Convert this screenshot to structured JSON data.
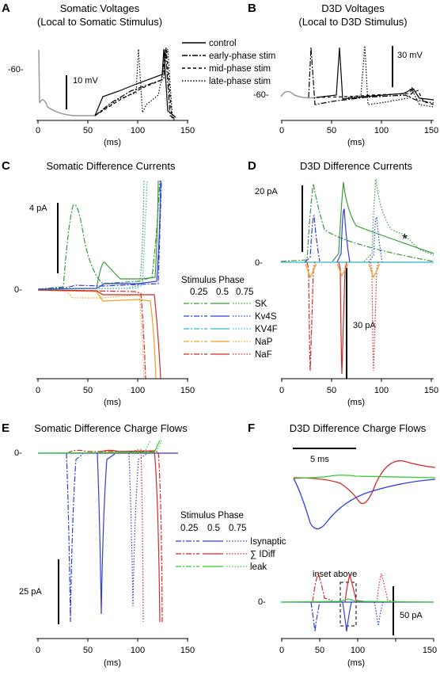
{
  "panels": {
    "A": {
      "letter": "A",
      "title": [
        "Somatic Voltages",
        "(Local to Somatic Stimulus)"
      ],
      "xlabel": "(ms)",
      "xticks": [
        "0",
        "50",
        "100",
        "150"
      ],
      "ylabel_mark": "-60-",
      "scalebar": "10 mV",
      "legend": [
        "control",
        "early-phase stim",
        "mid-phase stim",
        "late-phase stim"
      ]
    },
    "B": {
      "letter": "B",
      "title": [
        "D3D Voltages",
        "(Local to D3D Stimulus)"
      ],
      "xlabel": "(ms)",
      "xticks": [
        "0",
        "50",
        "100",
        "150"
      ],
      "ylabel_mark": "-60-",
      "scalebar": "30 mV",
      "star": "*"
    },
    "C": {
      "letter": "C",
      "title": [
        "Somatic Difference Currents"
      ],
      "xlabel": "(ms)",
      "xticks": [
        "0",
        "50",
        "100",
        "150"
      ],
      "ylabel_mark": "0-",
      "scalebar": "4 pA"
    },
    "D": {
      "letter": "D",
      "title": [
        "D3D Difference Currents"
      ],
      "xlabel": "(ms)",
      "xticks": [
        "0",
        "50",
        "100",
        "150"
      ],
      "ylabel_mark": "0-",
      "scalebar_top": "20 pA",
      "scalebar_bottom": "30 pA",
      "star": "*"
    },
    "E": {
      "letter": "E",
      "title": [
        "Somatic Difference Charge Flows"
      ],
      "xlabel": "(ms)",
      "xticks": [
        "0",
        "50",
        "100",
        "150"
      ],
      "ylabel_mark": "0-",
      "scalebar": "25 pA"
    },
    "F": {
      "letter": "F",
      "title": [
        "D3D Difference Charge Flows"
      ],
      "xlabel": "(ms)",
      "xticks": [
        "0",
        "50",
        "100",
        "150"
      ],
      "ylabel_mark": "0-",
      "scalebar": "50 pA",
      "inset_scalebar": "5 ms",
      "inset_label": "inset above"
    }
  },
  "legend_currents": {
    "title": "Stimulus Phase",
    "phases": [
      "0.25",
      "0.5",
      "0.75"
    ],
    "entries": [
      "SK",
      "Kv4S",
      "KV4F",
      "NaP",
      "NaF"
    ],
    "colors": [
      "#3a9a3a",
      "#2e3fd6",
      "#2ab8c8",
      "#f0a020",
      "#d42828"
    ]
  },
  "legend_charge": {
    "title": "Stimulus Phase",
    "phases": [
      "0.25",
      "0.5",
      "0.75"
    ],
    "entries": [
      "Isynaptic",
      "∑ IDiff",
      "leak"
    ],
    "colors": [
      "#2e3fd6",
      "#d42828",
      "#33cc33"
    ]
  },
  "chart_data": [
    {
      "type": "line",
      "panel": "A",
      "title": "Somatic Voltages (Local to Somatic Stimulus)",
      "xlabel": "(ms)",
      "xlim": [
        0,
        150
      ],
      "series": [
        {
          "name": "control",
          "x": [
            0,
            30,
            60,
            90,
            118,
            120,
            124,
            150
          ],
          "y": [
            -64,
            -65,
            -60,
            -56,
            -52,
            -35,
            -66,
            -67
          ]
        },
        {
          "name": "early-phase stim",
          "x": [
            0,
            30,
            60,
            90,
            118,
            120,
            126,
            150
          ],
          "y": [
            -64,
            -65,
            -61,
            -56,
            -52,
            -35,
            -67,
            -68
          ]
        },
        {
          "name": "mid-phase stim",
          "x": [
            0,
            30,
            60,
            90,
            118,
            120,
            127,
            150
          ],
          "y": [
            -64,
            -65,
            -62,
            -56,
            -52,
            -35,
            -67,
            -68
          ]
        },
        {
          "name": "late-phase stim",
          "x": [
            0,
            30,
            60,
            95,
            100,
            105,
            120,
            150
          ],
          "y": [
            -64,
            -65,
            -61,
            -57,
            -35,
            -67,
            -54,
            -68
          ]
        }
      ]
    },
    {
      "type": "line",
      "panel": "B",
      "title": "D3D Voltages (Local to D3D Stimulus)",
      "xlabel": "(ms)",
      "xlim": [
        0,
        150
      ],
      "series": [
        {
          "name": "control",
          "x": [
            0,
            40,
            63,
            66,
            90,
            130,
            135,
            150
          ],
          "y": [
            -61,
            -60,
            -58,
            -30,
            -60,
            -58,
            -57,
            -60
          ]
        },
        {
          "name": "early-phase stim",
          "x": [
            0,
            30,
            33,
            40,
            90,
            130,
            150
          ],
          "y": [
            -61,
            -60,
            -30,
            -62,
            -60,
            -59,
            -61
          ]
        },
        {
          "name": "mid-phase stim",
          "x": [
            0,
            60,
            63,
            70,
            130,
            150
          ],
          "y": [
            -61,
            -60,
            -30,
            -62,
            -59,
            -62
          ]
        },
        {
          "name": "late-phase stim",
          "x": [
            0,
            90,
            95,
            100,
            135,
            150
          ],
          "y": [
            -61,
            -60,
            -30,
            -63,
            -57,
            -62
          ]
        }
      ]
    },
    {
      "type": "line",
      "panel": "C",
      "title": "Somatic Difference Currents",
      "xlabel": "(ms)",
      "xlim": [
        0,
        150
      ],
      "series": [
        {
          "name": "SK 0.25",
          "x": [
            0,
            25,
            32,
            60,
            100,
            115
          ],
          "y": [
            0,
            0.2,
            4.2,
            0.5,
            0.6,
            5
          ]
        },
        {
          "name": "SK 0.5",
          "x": [
            0,
            58,
            63,
            75,
            110,
            118
          ],
          "y": [
            0,
            0.1,
            1.0,
            0.3,
            0.6,
            5
          ]
        },
        {
          "name": "Kv4S 0.5",
          "x": [
            0,
            60,
            65,
            110,
            120
          ],
          "y": [
            0,
            0.05,
            0.2,
            0.2,
            5
          ]
        },
        {
          "name": "NaP 0.5",
          "x": [
            0,
            60,
            65,
            110,
            118
          ],
          "y": [
            0,
            -0.1,
            -0.4,
            -0.3,
            -3
          ]
        },
        {
          "name": "NaF 0.5",
          "x": [
            0,
            60,
            110,
            120
          ],
          "y": [
            0,
            -0.1,
            -0.2,
            -3
          ]
        }
      ]
    },
    {
      "type": "line",
      "panel": "D",
      "title": "D3D Difference Currents",
      "xlabel": "(ms)",
      "xlim": [
        0,
        150
      ],
      "series": [
        {
          "name": "SK 0.25",
          "x": [
            0,
            28,
            33,
            60,
            130,
            150
          ],
          "y": [
            0,
            2,
            19,
            8,
            1,
            0.5
          ]
        },
        {
          "name": "SK 0.5",
          "x": [
            0,
            60,
            64,
            80,
            150
          ],
          "y": [
            0,
            2,
            19,
            10,
            2
          ]
        },
        {
          "name": "SK 0.75",
          "x": [
            0,
            90,
            95,
            110,
            130,
            150
          ],
          "y": [
            0,
            2,
            19,
            11,
            5,
            2
          ]
        },
        {
          "name": "Kv4S 0.5",
          "x": [
            0,
            60,
            63,
            66,
            150
          ],
          "y": [
            0,
            0.5,
            12,
            0.5,
            0
          ]
        },
        {
          "name": "NaF 0.5",
          "x": [
            0,
            60,
            63,
            66,
            150
          ],
          "y": [
            0,
            -2,
            -38,
            -2,
            0
          ]
        }
      ]
    },
    {
      "type": "line",
      "panel": "E",
      "title": "Somatic Difference Charge Flows",
      "xlabel": "(ms)",
      "xlim": [
        0,
        150
      ],
      "series": [
        {
          "name": "Isynaptic 0.25",
          "x": [
            0,
            25,
            30,
            33,
            40,
            150
          ],
          "y": [
            0,
            0,
            -80,
            -2,
            0,
            0
          ]
        },
        {
          "name": "Isynaptic 0.5",
          "x": [
            0,
            57,
            62,
            65,
            70,
            150
          ],
          "y": [
            0,
            0,
            -80,
            -2,
            0,
            0
          ]
        },
        {
          "name": "∑ IDiff 0.5",
          "x": [
            0,
            60,
            100,
            120,
            122
          ],
          "y": [
            0,
            1,
            1,
            2,
            -140
          ]
        },
        {
          "name": "leak 0.5",
          "x": [
            0,
            60,
            120,
            122
          ],
          "y": [
            0,
            0.5,
            1,
            8
          ]
        }
      ]
    },
    {
      "type": "line",
      "panel": "F",
      "title": "D3D Difference Charge Flows",
      "xlabel": "(ms)",
      "xlim": [
        0,
        160
      ],
      "series": [
        {
          "name": "Isynaptic 0.5",
          "x": [
            0,
            60,
            65,
            70,
            160
          ],
          "y": [
            0,
            0,
            -75,
            -5,
            0
          ]
        },
        {
          "name": "∑ IDiff 0.5",
          "x": [
            0,
            63,
            68,
            72,
            160
          ],
          "y": [
            0,
            0,
            55,
            8,
            0
          ]
        },
        {
          "name": "∑ IDiff 0.25",
          "x": [
            0,
            35,
            40,
            50,
            160
          ],
          "y": [
            0,
            0,
            45,
            5,
            0
          ]
        },
        {
          "name": "leak 0.5",
          "x": [
            0,
            60,
            70,
            160
          ],
          "y": [
            0,
            1,
            3,
            0
          ]
        }
      ]
    }
  ]
}
